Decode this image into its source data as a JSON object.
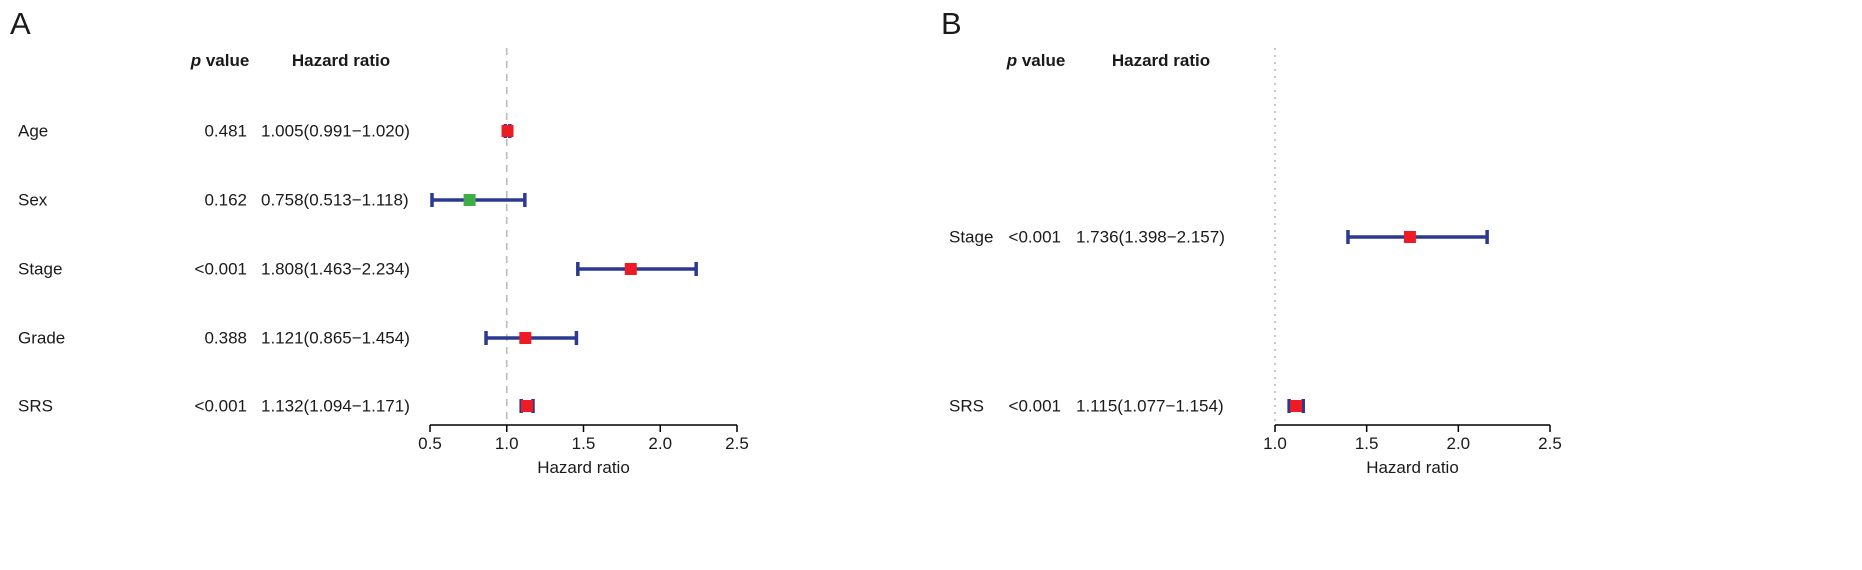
{
  "figure": {
    "background": "#ffffff"
  },
  "colors": {
    "ci_bar": "#2b3990",
    "marker_red": "#ed1c24",
    "marker_green": "#3fae49",
    "ref_line": "#bbbbbb",
    "axis": "#000000",
    "text": "#1a1a1a"
  },
  "chart_data": [
    {
      "panel": "A",
      "type": "forest",
      "columns": {
        "p_header": "p value",
        "hr_header": "Hazard ratio"
      },
      "xlabel": "Hazard ratio",
      "xlim": [
        0.5,
        2.5
      ],
      "x_ticks": [
        "0.5",
        "1.0",
        "1.5",
        "2.0",
        "2.5"
      ],
      "ref_line": 1.0,
      "ref_line_style": "dashed",
      "rows": [
        {
          "label": "Age",
          "p": "0.481",
          "hr_text": "1.005(0.991−1.020)",
          "est": 1.005,
          "lo": 0.991,
          "hi": 1.02,
          "marker": "red"
        },
        {
          "label": "Sex",
          "p": "0.162",
          "hr_text": "0.758(0.513−1.118)",
          "est": 0.758,
          "lo": 0.513,
          "hi": 1.118,
          "marker": "green"
        },
        {
          "label": "Stage",
          "p": "<0.001",
          "hr_text": "1.808(1.463−2.234)",
          "est": 1.808,
          "lo": 1.463,
          "hi": 2.234,
          "marker": "red"
        },
        {
          "label": "Grade",
          "p": "0.388",
          "hr_text": "1.121(0.865−1.454)",
          "est": 1.121,
          "lo": 0.865,
          "hi": 1.454,
          "marker": "red"
        },
        {
          "label": "SRS",
          "p": "<0.001",
          "hr_text": "1.132(1.094−1.171)",
          "est": 1.132,
          "lo": 1.094,
          "hi": 1.171,
          "marker": "red"
        }
      ]
    },
    {
      "panel": "B",
      "type": "forest",
      "columns": {
        "p_header": "p value",
        "hr_header": "Hazard ratio"
      },
      "xlabel": "Hazard ratio",
      "xlim": [
        1.0,
        2.5
      ],
      "x_ticks": [
        "1.0",
        "1.5",
        "2.0",
        "2.5"
      ],
      "ref_line": 1.0,
      "ref_line_style": "dotted",
      "rows": [
        {
          "label": "Stage",
          "p": "<0.001",
          "hr_text": "1.736(1.398−2.157)",
          "est": 1.736,
          "lo": 1.398,
          "hi": 2.157,
          "marker": "red"
        },
        {
          "label": "SRS",
          "p": "<0.001",
          "hr_text": "1.115(1.077−1.154)",
          "est": 1.115,
          "lo": 1.077,
          "hi": 1.154,
          "marker": "red"
        }
      ]
    }
  ]
}
